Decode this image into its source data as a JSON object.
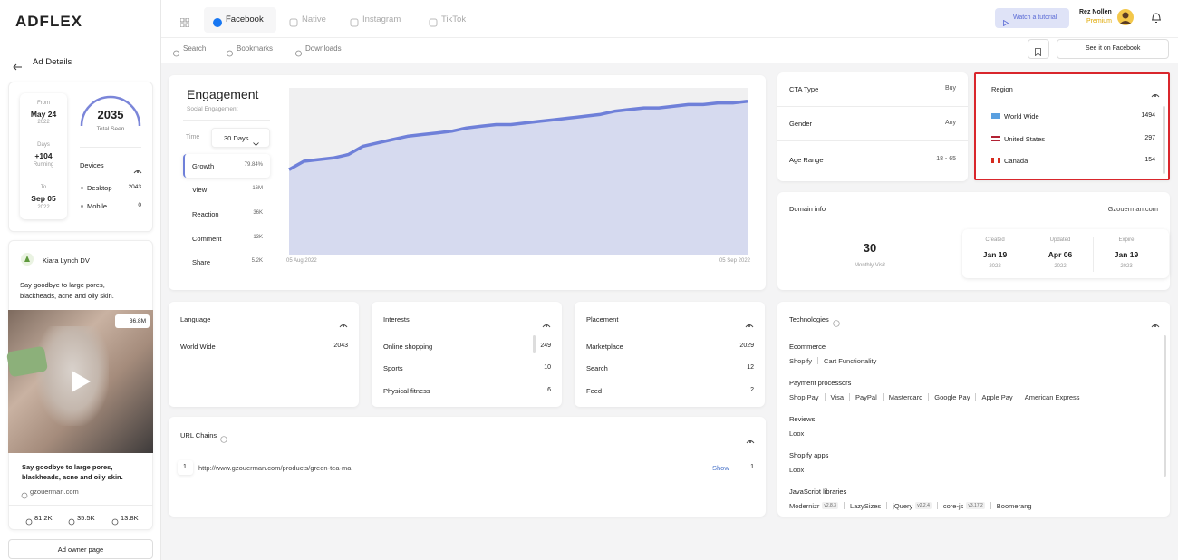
{
  "sidebar": {
    "logo": "ADFLEX",
    "back": "Ad Details",
    "dates": {
      "from_label": "From",
      "from": "May 24",
      "from_year": "2022",
      "days_label": "Days",
      "days": "+104",
      "days_note": "Running",
      "to_label": "To",
      "to": "Sep 05",
      "to_year": "2022"
    },
    "total_seen": {
      "value": 2035,
      "label": "Total Seen"
    },
    "devices": {
      "title": "Devices",
      "rows": [
        {
          "name": "Desktop",
          "value": 2043
        },
        {
          "name": "Mobile",
          "value": 0
        }
      ]
    },
    "ad": {
      "author": "Kiara Lynch DV",
      "text": "Say goodbye to large pores, blackheads, acne and oily skin.",
      "views": "36.8M",
      "caption": "Say goodbye to large pores, blackheads, acne and oily skin.",
      "domain": "gzouerman.com",
      "likes": "81.2K",
      "comments": "35.5K",
      "shares": "13.8K"
    },
    "owner_button": "Ad owner page"
  },
  "topbar": {
    "tabs": [
      "Facebook",
      "Native",
      "Instagram",
      "TikTok"
    ],
    "tutorial": "Watch a tutorial",
    "user": "Rez Nollen",
    "plan": "Premium"
  },
  "subnav": {
    "links": [
      "Search",
      "Bookmarks",
      "Downloads"
    ],
    "see_button": "See it on Facebook"
  },
  "engagement": {
    "title": "Engagement",
    "subtitle": "Social Engagement",
    "time_label": "Time",
    "time_value": "30 Days",
    "metrics": [
      {
        "name": "Growth",
        "value": "79.84%"
      },
      {
        "name": "View",
        "value": "16M"
      },
      {
        "name": "Reaction",
        "value": "36K"
      },
      {
        "name": "Comment",
        "value": "13K"
      },
      {
        "name": "Share",
        "value": "5.2K"
      }
    ]
  },
  "chart_data": {
    "type": "area",
    "categories": [
      "05 Aug 2022",
      null,
      null,
      null,
      null,
      null,
      null,
      null,
      null,
      null,
      null,
      null,
      null,
      null,
      null,
      null,
      null,
      null,
      null,
      null,
      null,
      null,
      null,
      null,
      null,
      null,
      null,
      null,
      null,
      null,
      null,
      "05 Sep 2022"
    ],
    "values": [
      51,
      56,
      57,
      58,
      60,
      65,
      67,
      69,
      71,
      72,
      73,
      74,
      76,
      77,
      78,
      78,
      79,
      80,
      81,
      82,
      83,
      84,
      86,
      87,
      88,
      88,
      89,
      90,
      90,
      91,
      91,
      92
    ],
    "ylim": [
      0,
      100
    ],
    "color": "#6f80d9",
    "fill_color": "#d6daef",
    "background": "#f0f0f1"
  },
  "targeting": {
    "rows": [
      {
        "label": "CTA Type",
        "value": "Buy"
      },
      {
        "label": "Gender",
        "value": "Any"
      },
      {
        "label": "Age Range",
        "value": "18 - 65"
      }
    ]
  },
  "region": {
    "title": "Region",
    "rows": [
      {
        "name": "World Wide",
        "value": 1494
      },
      {
        "name": "United States",
        "value": 297
      },
      {
        "name": "Canada",
        "value": 154
      }
    ]
  },
  "domain_info": {
    "title": "Domain info",
    "domain": "Gzouerman.com",
    "monthly_visit": {
      "value": 30,
      "label": "Monthly Visit"
    },
    "dates": [
      {
        "label": "Created",
        "date": "Jan 19",
        "year": "2022"
      },
      {
        "label": "Updated",
        "date": "Apr 06",
        "year": "2022"
      },
      {
        "label": "Expire",
        "date": "Jan 19",
        "year": "2023"
      }
    ]
  },
  "language": {
    "title": "Language",
    "rows": [
      {
        "name": "World Wide",
        "value": 2043
      }
    ]
  },
  "interests": {
    "title": "Interests",
    "rows": [
      {
        "name": "Online shopping",
        "value": 249
      },
      {
        "name": "Sports",
        "value": 10
      },
      {
        "name": "Physical fitness",
        "value": 6
      }
    ]
  },
  "placement": {
    "title": "Placement",
    "rows": [
      {
        "name": "Marketplace",
        "value": 2029
      },
      {
        "name": "Search",
        "value": 12
      },
      {
        "name": "Feed",
        "value": 2
      }
    ]
  },
  "url_chains": {
    "title": "URL Chains",
    "rows": [
      {
        "index": 1,
        "url": "http://www.gzouerman.com/products/green-tea-ma",
        "action": "Show",
        "count": 1
      }
    ]
  },
  "technologies": {
    "title": "Technologies",
    "groups": [
      {
        "name": "Ecommerce",
        "items": [
          {
            "name": "Shopify"
          },
          {
            "name": "Cart Functionality"
          }
        ]
      },
      {
        "name": "Payment processors",
        "items": [
          {
            "name": "Shop Pay"
          },
          {
            "name": "Visa"
          },
          {
            "name": "PayPal"
          },
          {
            "name": "Mastercard"
          },
          {
            "name": "Google Pay"
          },
          {
            "name": "Apple Pay"
          },
          {
            "name": "American Express"
          }
        ]
      },
      {
        "name": "Reviews",
        "items": [
          {
            "name": "Loox"
          }
        ]
      },
      {
        "name": "Shopify apps",
        "items": [
          {
            "name": "Loox"
          }
        ]
      },
      {
        "name": "JavaScript libraries",
        "items": [
          {
            "name": "Modernizr",
            "version": "v2.8.3"
          },
          {
            "name": "LazySizes"
          },
          {
            "name": "jQuery",
            "version": "v2.2.4"
          },
          {
            "name": "core-js",
            "version": "v3.17.2"
          },
          {
            "name": "Boomerang"
          }
        ]
      }
    ]
  }
}
